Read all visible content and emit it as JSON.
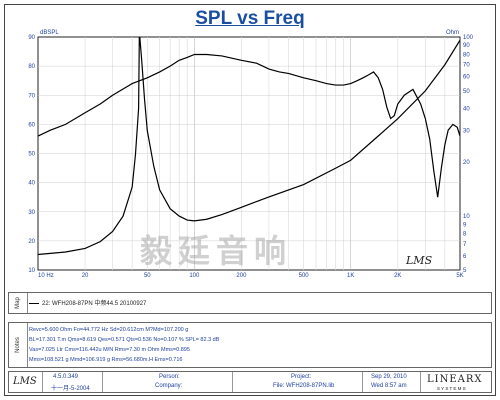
{
  "title": "SPL vs Freq",
  "chart_data": {
    "type": "line",
    "title": "SPL vs Freq",
    "x_scale": "log",
    "xlim": [
      10,
      5000
    ],
    "x_ticks": [
      {
        "value": 10,
        "label": "10  Hz"
      },
      {
        "value": 20,
        "label": "20"
      },
      {
        "value": 50,
        "label": "50"
      },
      {
        "value": 100,
        "label": "100"
      },
      {
        "value": 200,
        "label": "200"
      },
      {
        "value": 500,
        "label": "500"
      },
      {
        "value": 1000,
        "label": "1K"
      },
      {
        "value": 2000,
        "label": "2K"
      },
      {
        "value": 5000,
        "label": "5K"
      }
    ],
    "left_axis": {
      "label": "dBSPL",
      "ylim": [
        10,
        90
      ],
      "ticks": [
        10,
        20,
        30,
        40,
        50,
        60,
        70,
        80,
        90
      ]
    },
    "right_axis": {
      "label": "Ohm",
      "ylim": [
        5,
        100
      ],
      "ticks": [
        5,
        6,
        7,
        8,
        9,
        10,
        20,
        30,
        40,
        50,
        60,
        70,
        80,
        90,
        100
      ]
    },
    "grid": true,
    "series": [
      {
        "axis": "left",
        "color": "#000000",
        "points": [
          [
            10,
            56
          ],
          [
            12,
            58
          ],
          [
            15,
            60
          ],
          [
            20,
            64
          ],
          [
            25,
            67
          ],
          [
            30,
            70
          ],
          [
            40,
            74
          ],
          [
            50,
            76
          ],
          [
            60,
            78
          ],
          [
            70,
            80
          ],
          [
            80,
            82
          ],
          [
            90,
            83
          ],
          [
            100,
            84
          ],
          [
            120,
            84
          ],
          [
            150,
            83.5
          ],
          [
            200,
            82
          ],
          [
            250,
            81
          ],
          [
            300,
            79
          ],
          [
            350,
            78
          ],
          [
            400,
            77.5
          ],
          [
            500,
            76
          ],
          [
            600,
            75
          ],
          [
            700,
            74
          ],
          [
            800,
            73.5
          ],
          [
            900,
            73.5
          ],
          [
            1000,
            74
          ],
          [
            1100,
            75
          ],
          [
            1200,
            76
          ],
          [
            1300,
            77
          ],
          [
            1400,
            78
          ],
          [
            1500,
            76
          ],
          [
            1600,
            72
          ],
          [
            1700,
            66
          ],
          [
            1800,
            62
          ],
          [
            1900,
            63
          ],
          [
            2000,
            67
          ],
          [
            2200,
            70
          ],
          [
            2500,
            72
          ],
          [
            2800,
            67
          ],
          [
            3000,
            62
          ],
          [
            3200,
            55
          ],
          [
            3400,
            44
          ],
          [
            3600,
            35
          ],
          [
            3800,
            45
          ],
          [
            4000,
            53
          ],
          [
            4200,
            58
          ],
          [
            4500,
            60
          ],
          [
            4800,
            59
          ],
          [
            5000,
            56
          ]
        ]
      },
      {
        "axis": "right",
        "color": "#000000",
        "points": [
          [
            10,
            6.1
          ],
          [
            15,
            6.3
          ],
          [
            20,
            6.6
          ],
          [
            25,
            7.2
          ],
          [
            30,
            8.2
          ],
          [
            35,
            10
          ],
          [
            40,
            14.5
          ],
          [
            42,
            22
          ],
          [
            44,
            40
          ],
          [
            44.5,
            107
          ],
          [
            46,
            75
          ],
          [
            48,
            45
          ],
          [
            50,
            30
          ],
          [
            55,
            19
          ],
          [
            60,
            14
          ],
          [
            70,
            11
          ],
          [
            80,
            10
          ],
          [
            90,
            9.5
          ],
          [
            100,
            9.4
          ],
          [
            120,
            9.6
          ],
          [
            150,
            10.2
          ],
          [
            200,
            11.2
          ],
          [
            300,
            12.8
          ],
          [
            500,
            15
          ],
          [
            800,
            18.5
          ],
          [
            1000,
            20.5
          ],
          [
            1500,
            28
          ],
          [
            2000,
            35
          ],
          [
            3000,
            50
          ],
          [
            4000,
            70
          ],
          [
            5000,
            96
          ]
        ]
      }
    ]
  },
  "watermark": "毅廷音响",
  "plot_logo": "LMS",
  "map": {
    "label": "Map",
    "entry": "22: WFH208-87PN 中频44.5  20100927"
  },
  "notes": {
    "label": "Notes",
    "lines": [
      "Revc=5.600 Ohm Fo=44.772 Hz  Sd=20.612cm M?Md=107.200 g",
      "BL=17.301 T.m  Qms=8.619  Qes=0.571  Qts=0.536  No=0.107 %  SPL= 82.3 dB",
      "Vas=7.025 Ltr  Cms=116.442u M/N  Rms=7.30 m  Ohm Mms=0.895",
      "Mms=108.521 g  Mmd=106.919 g  Rms=56.680m.H  Ems=0.716"
    ]
  },
  "footer": {
    "logo": "LMS",
    "version": "4.5.0.349",
    "version_date": "十一月-5-2004",
    "person_label": "Person:",
    "company_label": "Company:",
    "project_label": "Project:",
    "file_label": "File: WFH208-87PN.lib",
    "date": "Sep 29, 2010",
    "time": "Wed  8:57 am",
    "brand": "LINEARX",
    "brand_sub": "S Y S T E M S"
  }
}
